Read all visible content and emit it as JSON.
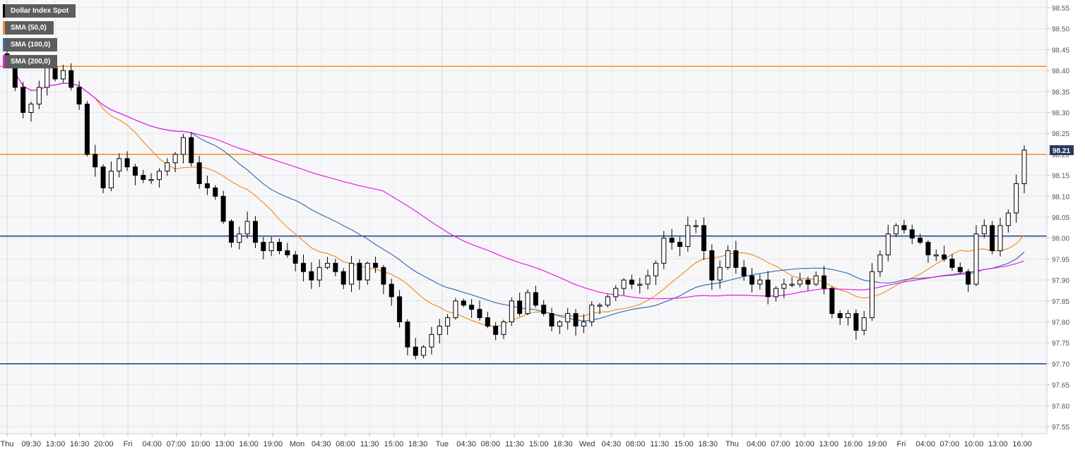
{
  "legend": [
    {
      "label": "Dollar Index Spot",
      "color": "#000000"
    },
    {
      "label": "SMA (50,0)",
      "color": "#f0921e"
    },
    {
      "label": "SMA (100,0)",
      "color": "#3c6fb4"
    },
    {
      "label": "SMA (200,0)",
      "color": "#e81ee8"
    }
  ],
  "price_tag": "98.21",
  "chart_data": {
    "type": "candlestick",
    "title": "Dollar Index Spot",
    "ylim": [
      97.53,
      98.57
    ],
    "y_ticks": [
      "98.55",
      "98.50",
      "98.45",
      "98.40",
      "98.35",
      "98.30",
      "98.25",
      "98.20",
      "98.15",
      "98.10",
      "98.05",
      "98.00",
      "97.95",
      "97.90",
      "97.85",
      "97.80",
      "97.75",
      "97.70",
      "97.65",
      "97.60",
      "97.55"
    ],
    "x_ticks": [
      "Thu",
      "09:30",
      "13:00",
      "16:30",
      "20:00",
      "Fri",
      "04:00",
      "07:00",
      "10:00",
      "13:00",
      "16:00",
      "19:00",
      "Mon",
      "04:30",
      "08:00",
      "11:30",
      "15:00",
      "18:30",
      "Tue",
      "04:30",
      "08:00",
      "11:30",
      "15:00",
      "18:30",
      "Wed",
      "04:30",
      "08:00",
      "11:30",
      "15:00",
      "18:30",
      "Thu",
      "04:00",
      "07:00",
      "10:00",
      "13:00",
      "16:00",
      "19:00",
      "Fri",
      "04:00",
      "07:00",
      "10:00",
      "13:00",
      "16:00"
    ],
    "horizontal_levels": [
      {
        "value": 98.41,
        "color": "#f0921e"
      },
      {
        "value": 98.2,
        "color": "#f0921e"
      },
      {
        "value": 98.005,
        "color": "#1a3c8c"
      },
      {
        "value": 97.7,
        "color": "#1a3c8c"
      }
    ],
    "last_price": 98.21,
    "price_path": [
      98.43,
      98.36,
      98.3,
      98.32,
      98.36,
      98.41,
      98.38,
      98.4,
      98.36,
      98.32,
      98.2,
      98.17,
      98.12,
      98.16,
      98.19,
      98.17,
      98.15,
      98.14,
      98.14,
      98.16,
      98.18,
      98.2,
      98.24,
      98.18,
      98.13,
      98.12,
      98.1,
      98.04,
      97.99,
      98.01,
      98.04,
      97.99,
      97.97,
      97.99,
      97.97,
      97.96,
      97.94,
      97.92,
      97.9,
      97.93,
      97.94,
      97.92,
      97.89,
      97.94,
      97.9,
      97.94,
      97.93,
      97.89,
      97.86,
      97.8,
      97.74,
      97.72,
      97.74,
      97.77,
      97.79,
      97.81,
      97.85,
      97.84,
      97.83,
      97.81,
      97.79,
      97.77,
      97.8,
      97.85,
      97.82,
      97.87,
      97.84,
      97.82,
      97.79,
      97.8,
      97.82,
      97.79,
      97.8,
      97.84,
      97.84,
      97.86,
      97.88,
      97.9,
      97.89,
      97.89,
      97.91,
      97.94,
      98.0,
      97.99,
      97.98,
      98.03,
      98.03,
      97.97,
      97.9,
      97.93,
      97.97,
      97.93,
      97.91,
      97.89,
      97.9,
      97.86,
      97.88,
      97.89,
      97.89,
      97.9,
      97.89,
      97.91,
      97.88,
      97.82,
      97.81,
      97.82,
      97.78,
      97.81,
      97.92,
      97.96,
      98.01,
      98.03,
      98.02,
      98.0,
      97.99,
      97.96,
      97.96,
      97.95,
      97.93,
      97.92,
      97.89,
      98.01,
      98.03,
      97.97,
      98.03,
      98.06,
      98.13,
      98.21
    ]
  }
}
